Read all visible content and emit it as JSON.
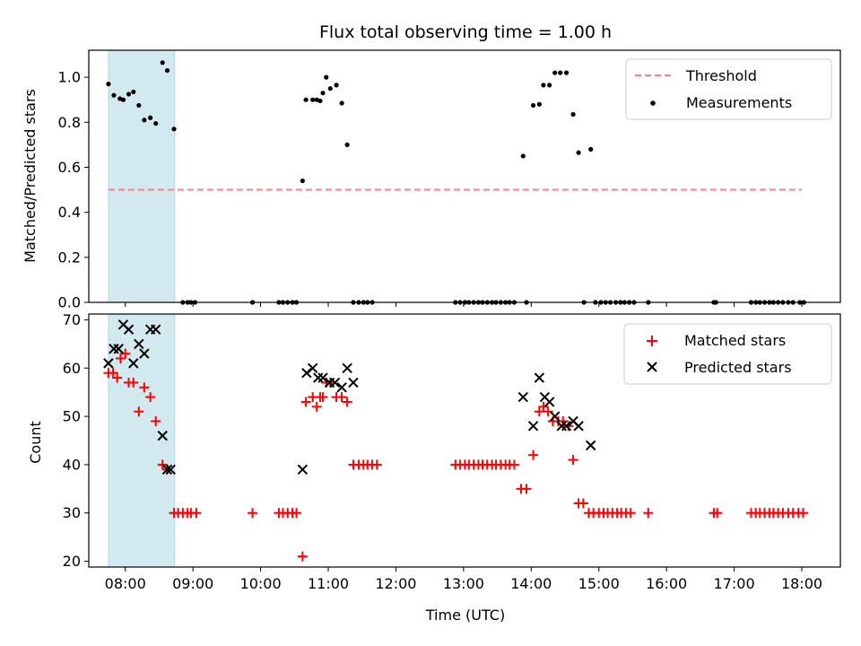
{
  "chart_data": [
    {
      "type": "scatter",
      "title": "Flux total observing time = 1.00 h",
      "xlabel": "",
      "ylabel": "Matched/Predicted stars",
      "xlim": [
        7.46,
        18.57
      ],
      "ylim": [
        0.0,
        1.12
      ],
      "yticks": [
        "0.0",
        "0.2",
        "0.4",
        "0.6",
        "0.8",
        "1.0"
      ],
      "xticks": [
        "08:00",
        "09:00",
        "10:00",
        "11:00",
        "12:00",
        "13:00",
        "14:00",
        "15:00",
        "16:00",
        "17:00",
        "18:00"
      ],
      "xtick_labels_shown": false,
      "grid": false,
      "legend_position": "top-right",
      "highlight_span": {
        "x_start": 7.75,
        "x_end": 8.73,
        "color": "#d1e9ef"
      },
      "series": [
        {
          "name": "Threshold",
          "kind": "dashed-line",
          "color": "#ff7f7f",
          "x": [
            7.75,
            18.0
          ],
          "y": [
            0.5,
            0.5
          ]
        },
        {
          "name": "Measurements",
          "kind": "dots",
          "color": "#000000",
          "x": [
            7.75,
            7.83,
            7.92,
            7.97,
            8.05,
            8.12,
            8.2,
            8.28,
            8.37,
            8.45,
            8.55,
            8.62,
            8.72,
            8.85,
            8.92,
            8.97,
            9.03,
            9.88,
            10.27,
            10.33,
            10.4,
            10.47,
            10.53,
            10.62,
            10.67,
            10.77,
            10.83,
            10.88,
            10.92,
            10.97,
            11.03,
            11.12,
            11.2,
            11.28,
            11.37,
            11.45,
            11.52,
            11.58,
            11.65,
            12.88,
            12.95,
            13.02,
            13.08,
            13.15,
            13.22,
            13.28,
            13.35,
            13.42,
            13.48,
            13.55,
            13.62,
            13.68,
            13.75,
            13.88,
            13.93,
            14.03,
            14.12,
            14.18,
            14.27,
            14.35,
            14.43,
            14.52,
            14.62,
            14.7,
            14.78,
            14.88,
            14.95,
            15.03,
            15.1,
            15.17,
            15.25,
            15.32,
            15.38,
            15.45,
            15.52,
            15.73,
            16.7,
            16.73,
            17.25,
            17.32,
            17.38,
            17.45,
            17.52,
            17.58,
            17.65,
            17.72,
            17.8,
            17.87,
            17.97,
            18.03
          ],
          "y": [
            0.97,
            0.92,
            0.905,
            0.9,
            0.925,
            0.935,
            0.875,
            0.81,
            0.82,
            0.795,
            1.065,
            1.03,
            0.77,
            0.0,
            0.0,
            0.0,
            0.0,
            0.0,
            0.0,
            0.0,
            0.0,
            0.0,
            0.0,
            0.54,
            0.9,
            0.9,
            0.9,
            0.895,
            0.93,
            1.0,
            0.95,
            0.965,
            0.885,
            0.7,
            0.0,
            0.0,
            0.0,
            0.0,
            0.0,
            0.0,
            0.0,
            0.0,
            0.0,
            0.0,
            0.0,
            0.0,
            0.0,
            0.0,
            0.0,
            0.0,
            0.0,
            0.0,
            0.0,
            0.65,
            0.0,
            0.875,
            0.88,
            0.965,
            0.965,
            1.02,
            1.02,
            1.02,
            0.835,
            0.665,
            0.0,
            0.68,
            0.0,
            0.0,
            0.0,
            0.0,
            0.0,
            0.0,
            0.0,
            0.0,
            0.0,
            0.0,
            0.0,
            0.0,
            0.0,
            0.0,
            0.0,
            0.0,
            0.0,
            0.0,
            0.0,
            0.0,
            0.0,
            0.0,
            0.0,
            0.0
          ]
        }
      ]
    },
    {
      "type": "scatter",
      "title": "",
      "xlabel": "Time (UTC)",
      "ylabel": "Count",
      "xlim": [
        7.46,
        18.57
      ],
      "ylim": [
        18.8,
        71.2
      ],
      "yticks": [
        "20",
        "30",
        "40",
        "50",
        "60",
        "70"
      ],
      "xticks": [
        "08:00",
        "09:00",
        "10:00",
        "11:00",
        "12:00",
        "13:00",
        "14:00",
        "15:00",
        "16:00",
        "17:00",
        "18:00"
      ],
      "grid": false,
      "legend_position": "top-right",
      "highlight_span": {
        "x_start": 7.75,
        "x_end": 8.73,
        "color": "#d1e9ef"
      },
      "series": [
        {
          "name": "Matched stars",
          "marker": "+",
          "color": "#ff0000",
          "x": [
            7.75,
            7.82,
            7.88,
            7.93,
            8.0,
            8.05,
            8.12,
            8.2,
            8.28,
            8.37,
            8.45,
            8.55,
            8.62,
            8.72,
            8.78,
            8.85,
            8.92,
            8.97,
            9.05,
            9.88,
            10.27,
            10.33,
            10.4,
            10.47,
            10.53,
            10.62,
            10.67,
            10.77,
            10.83,
            10.88,
            10.92,
            10.97,
            11.03,
            11.12,
            11.2,
            11.28,
            11.37,
            11.45,
            11.52,
            11.58,
            11.65,
            11.72,
            12.88,
            12.95,
            13.02,
            13.08,
            13.15,
            13.22,
            13.28,
            13.35,
            13.42,
            13.48,
            13.55,
            13.62,
            13.68,
            13.75,
            13.85,
            13.93,
            14.03,
            14.12,
            14.18,
            14.25,
            14.32,
            14.4,
            14.47,
            14.55,
            14.62,
            14.7,
            14.77,
            14.85,
            14.92,
            15.0,
            15.07,
            15.13,
            15.2,
            15.27,
            15.33,
            15.4,
            15.47,
            15.73,
            16.7,
            16.75,
            17.25,
            17.32,
            17.38,
            17.45,
            17.52,
            17.58,
            17.65,
            17.72,
            17.8,
            17.87,
            17.95,
            18.02
          ],
          "y": [
            59,
            59,
            58,
            62,
            63,
            57,
            57,
            51,
            56,
            54,
            49,
            40,
            39,
            30,
            30,
            30,
            30,
            30,
            30,
            30,
            30,
            30,
            30,
            30,
            30,
            21,
            53,
            54,
            52,
            54,
            54,
            57,
            57,
            54,
            54,
            53,
            40,
            40,
            40,
            40,
            40,
            40,
            40,
            40,
            40,
            40,
            40,
            40,
            40,
            40,
            40,
            40,
            40,
            40,
            40,
            40,
            35,
            35,
            42,
            51,
            52,
            51,
            49,
            49,
            49,
            48,
            41,
            32,
            32,
            30,
            30,
            30,
            30,
            30,
            30,
            30,
            30,
            30,
            30,
            30,
            30,
            30,
            30,
            30,
            30,
            30,
            30,
            30,
            30,
            30,
            30,
            30,
            30,
            30
          ]
        },
        {
          "name": "Predicted stars",
          "marker": "x",
          "color": "#000000",
          "x": [
            7.75,
            7.83,
            7.9,
            7.97,
            8.05,
            8.12,
            8.2,
            8.28,
            8.37,
            8.45,
            8.55,
            8.62,
            8.67,
            10.62,
            10.68,
            10.77,
            10.85,
            10.92,
            11.02,
            11.1,
            11.2,
            11.28,
            11.37,
            13.88,
            14.03,
            14.12,
            14.2,
            14.27,
            14.35,
            14.45,
            14.52,
            14.62,
            14.7,
            14.88
          ],
          "y": [
            61,
            64,
            64,
            69,
            68,
            61,
            65,
            63,
            68,
            68,
            46,
            39,
            39,
            39,
            59,
            60,
            58,
            58,
            57,
            57,
            56,
            60,
            57,
            54,
            48,
            58,
            54,
            53,
            50,
            48,
            48,
            49,
            48,
            44
          ]
        }
      ]
    }
  ]
}
